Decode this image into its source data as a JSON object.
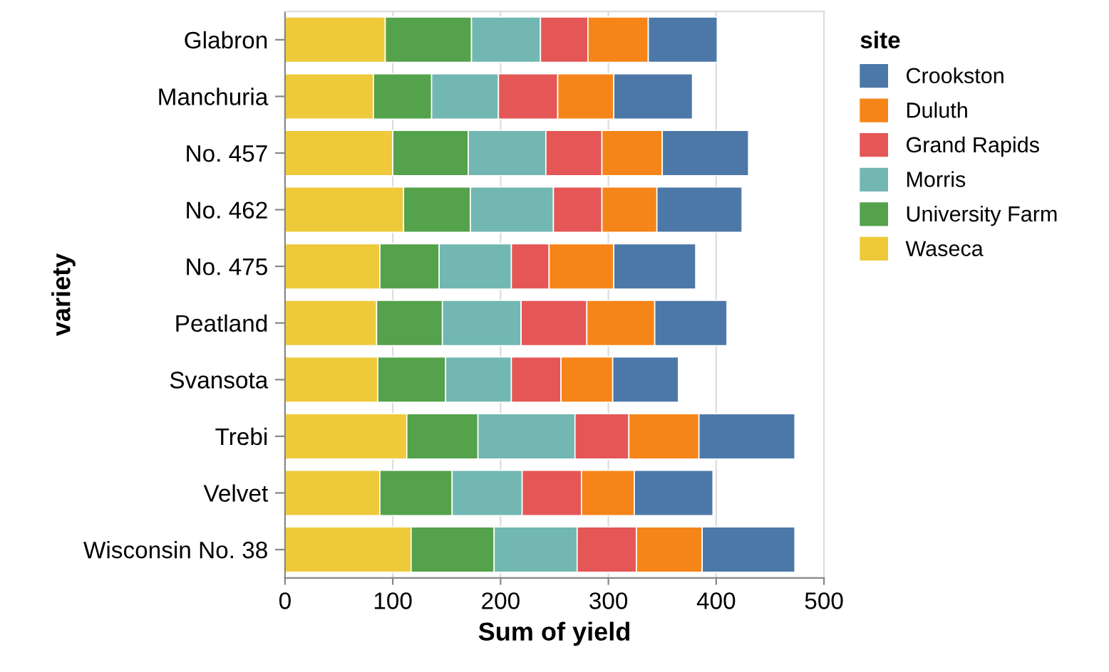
{
  "chart_data": {
    "type": "bar",
    "orientation": "horizontal",
    "stacked": true,
    "xlabel": "Sum of yield",
    "ylabel": "variety",
    "legend_title": "site",
    "legend": "right",
    "categories": [
      "Glabron",
      "Manchuria",
      "No. 457",
      "No. 462",
      "No. 475",
      "Peatland",
      "Svansota",
      "Trebi",
      "Velvet",
      "Wisconsin No. 38"
    ],
    "series": [
      {
        "name": "Waseca",
        "color": "#eeca3b",
        "values": [
          93,
          82,
          100,
          110,
          88,
          85,
          86,
          113,
          88,
          117
        ]
      },
      {
        "name": "University Farm",
        "color": "#54a24b",
        "values": [
          80,
          54,
          70,
          62,
          55,
          61,
          63,
          66,
          67,
          77
        ]
      },
      {
        "name": "Morris",
        "color": "#72b7b2",
        "values": [
          64,
          62,
          72,
          77,
          67,
          73,
          61,
          90,
          65,
          77
        ]
      },
      {
        "name": "Grand Rapids",
        "color": "#e45756",
        "values": [
          44,
          55,
          52,
          45,
          35,
          61,
          46,
          50,
          55,
          55
        ]
      },
      {
        "name": "Duluth",
        "color": "#f58518",
        "values": [
          56,
          52,
          56,
          51,
          60,
          63,
          48,
          65,
          49,
          61
        ]
      },
      {
        "name": "Crookston",
        "color": "#4c78a8",
        "values": [
          64,
          73,
          80,
          79,
          76,
          67,
          61,
          89,
          73,
          86
        ]
      }
    ],
    "xlim": [
      0,
      500
    ],
    "xticks": [
      0,
      100,
      200,
      300,
      400,
      500
    ],
    "grid": "x"
  }
}
